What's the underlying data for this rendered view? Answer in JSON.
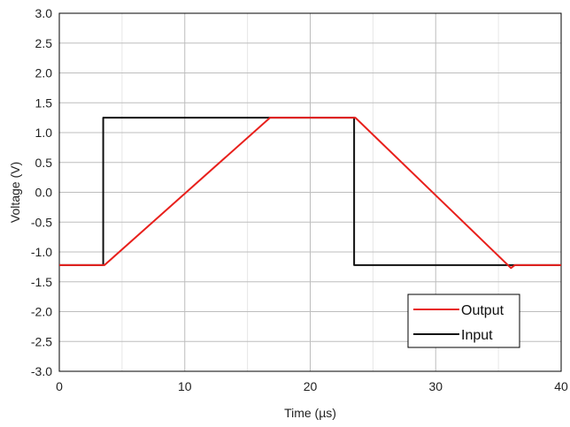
{
  "chart_data": {
    "type": "line",
    "title": "",
    "xlabel": "Time (µs)",
    "ylabel": "Voltage (V)",
    "xlim": [
      0,
      40
    ],
    "ylim": [
      -3.0,
      3.0
    ],
    "x_ticks": [
      0,
      10,
      20,
      30,
      40
    ],
    "x_tick_labels": [
      "0",
      "10",
      "20",
      "30",
      "40"
    ],
    "y_ticks": [
      -3.0,
      -2.5,
      -2.0,
      -1.5,
      -1.0,
      -0.5,
      0.0,
      0.5,
      1.0,
      1.5,
      2.0,
      2.5,
      3.0
    ],
    "y_tick_labels": [
      "-3.0",
      "-2.5",
      "-2.0",
      "-1.5",
      "-1.0",
      "-0.5",
      "0.0",
      "0.5",
      "1.0",
      "1.5",
      "2.0",
      "2.5",
      "3.0"
    ],
    "grid": true,
    "legend_position": "bottom-right",
    "series": [
      {
        "name": "Output",
        "color": "#e8201c",
        "x": [
          0,
          3.6,
          16.8,
          23.6,
          36.0,
          36.3,
          40
        ],
        "y": [
          -1.22,
          -1.22,
          1.25,
          1.25,
          -1.27,
          -1.22,
          -1.22
        ]
      },
      {
        "name": "Input",
        "color": "#111111",
        "x": [
          0,
          3.5,
          3.5,
          23.5,
          23.5,
          40
        ],
        "y": [
          -1.22,
          -1.22,
          1.25,
          1.25,
          -1.22,
          -1.22
        ]
      }
    ]
  }
}
